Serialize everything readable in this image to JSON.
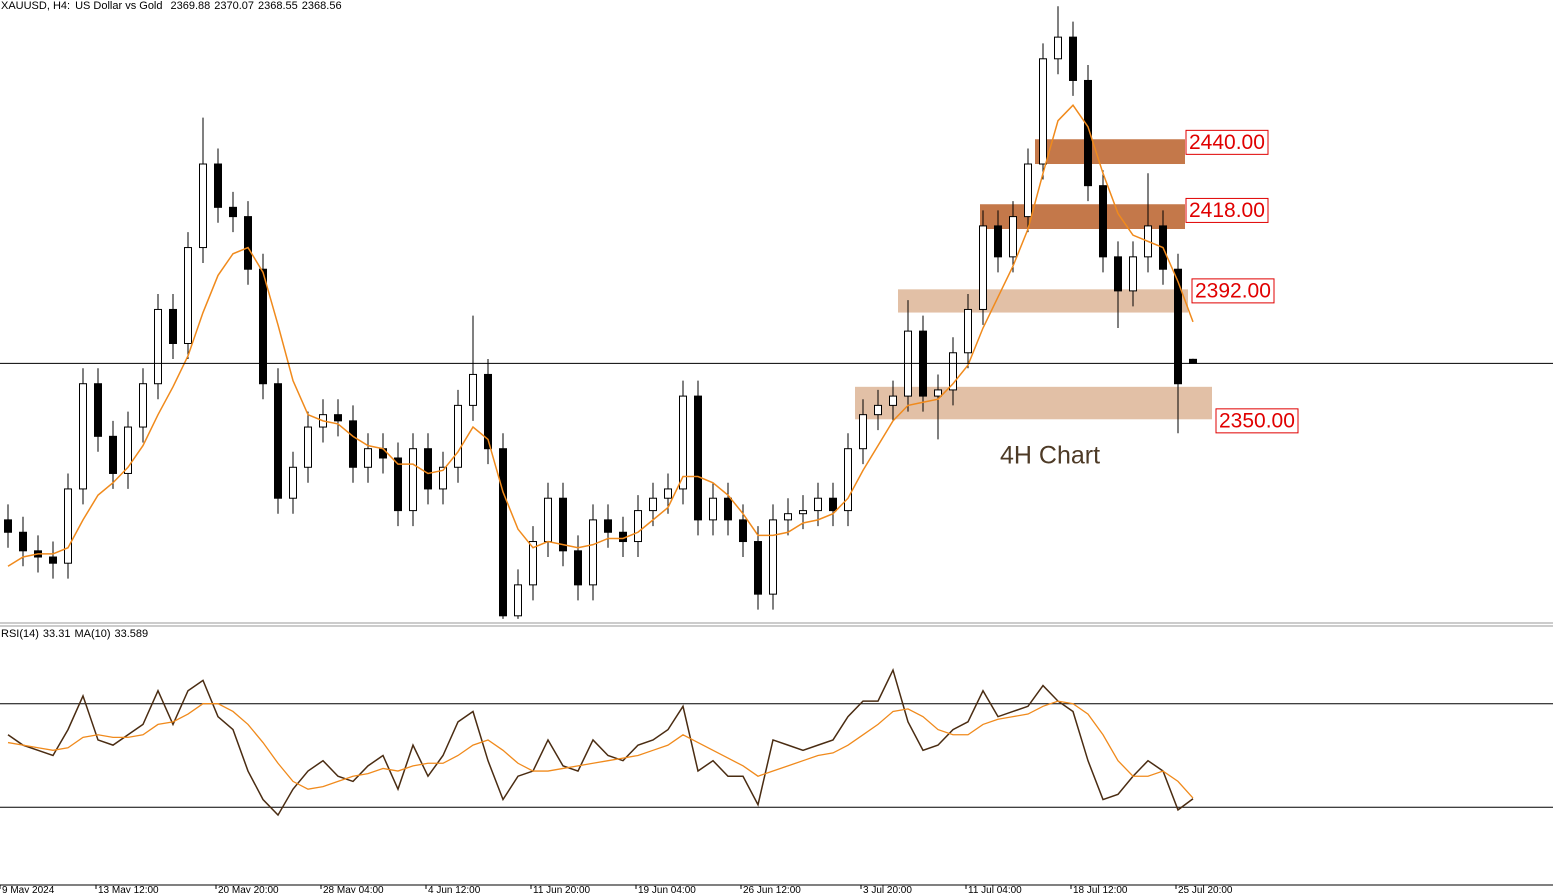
{
  "chart_data": {
    "type": "candlestick",
    "symbol": "XAUUSD, H4:",
    "description": "US Dollar vs Gold",
    "annotation": "4H Chart",
    "ylim": [
      2285,
      2486
    ],
    "categories": [
      "9 May 2024",
      null,
      null,
      null,
      null,
      null,
      "13 May 12:00",
      null,
      null,
      null,
      null,
      null,
      null,
      null,
      "20 May 20:00",
      null,
      null,
      null,
      null,
      null,
      null,
      "28 May 04:00",
      null,
      null,
      null,
      null,
      null,
      null,
      "4 Jun 12:00",
      null,
      null,
      null,
      null,
      null,
      null,
      "11 Jun 20:00",
      null,
      null,
      null,
      null,
      null,
      null,
      "19 Jun 04:00",
      null,
      null,
      null,
      null,
      null,
      null,
      "26 Jun 12:00",
      null,
      null,
      null,
      null,
      null,
      null,
      null,
      "3 Jul 20:00",
      null,
      null,
      null,
      null,
      null,
      null,
      "11 Jul 04:00",
      null,
      null,
      null,
      null,
      null,
      null,
      "18 Jul 12:00",
      null,
      null,
      null,
      null,
      null,
      null,
      "25 Jul 20:00",
      null
    ],
    "ohlc": [
      [
        2318,
        2323,
        2309,
        2314
      ],
      [
        2314,
        2319,
        2303,
        2308
      ],
      [
        2308,
        2313,
        2301,
        2306
      ],
      [
        2306,
        2311,
        2299,
        2304
      ],
      [
        2304,
        2333,
        2299,
        2328
      ],
      [
        2328,
        2367,
        2323,
        2362
      ],
      [
        2362,
        2367,
        2340,
        2345
      ],
      [
        2345,
        2350,
        2328,
        2333
      ],
      [
        2333,
        2353,
        2328,
        2348
      ],
      [
        2348,
        2367,
        2343,
        2362
      ],
      [
        2362,
        2391,
        2357,
        2386
      ],
      [
        2386,
        2391,
        2370,
        2375
      ],
      [
        2375,
        2411,
        2370,
        2406
      ],
      [
        2406,
        2448,
        2401,
        2433
      ],
      [
        2433,
        2438,
        2414,
        2419
      ],
      [
        2419,
        2424,
        2411,
        2416
      ],
      [
        2416,
        2421,
        2394,
        2399
      ],
      [
        2399,
        2404,
        2357,
        2362
      ],
      [
        2362,
        2367,
        2320,
        2325
      ],
      [
        2325,
        2340,
        2320,
        2335
      ],
      [
        2335,
        2353,
        2330,
        2348
      ],
      [
        2348,
        2357,
        2343,
        2352
      ],
      [
        2352,
        2357,
        2345,
        2350
      ],
      [
        2350,
        2355,
        2330,
        2335
      ],
      [
        2335,
        2346,
        2330,
        2341
      ],
      [
        2341,
        2346,
        2333,
        2338
      ],
      [
        2338,
        2343,
        2316,
        2321
      ],
      [
        2321,
        2346,
        2316,
        2341
      ],
      [
        2341,
        2346,
        2323,
        2328
      ],
      [
        2328,
        2340,
        2323,
        2335
      ],
      [
        2335,
        2360,
        2330,
        2355
      ],
      [
        2355,
        2384,
        2350,
        2365
      ],
      [
        2365,
        2370,
        2336,
        2341
      ],
      [
        2341,
        2346,
        2286,
        2287
      ],
      [
        2287,
        2302,
        2286,
        2297
      ],
      [
        2297,
        2316,
        2292,
        2311
      ],
      [
        2311,
        2330,
        2306,
        2325
      ],
      [
        2325,
        2330,
        2303,
        2308
      ],
      [
        2308,
        2313,
        2292,
        2297
      ],
      [
        2297,
        2323,
        2292,
        2318
      ],
      [
        2318,
        2323,
        2309,
        2314
      ],
      [
        2314,
        2319,
        2306,
        2311
      ],
      [
        2311,
        2326,
        2306,
        2321
      ],
      [
        2321,
        2330,
        2316,
        2325
      ],
      [
        2325,
        2333,
        2320,
        2328
      ],
      [
        2328,
        2363,
        2323,
        2358
      ],
      [
        2358,
        2363,
        2313,
        2318
      ],
      [
        2318,
        2330,
        2313,
        2325
      ],
      [
        2325,
        2330,
        2313,
        2318
      ],
      [
        2318,
        2323,
        2306,
        2311
      ],
      [
        2311,
        2316,
        2289,
        2294
      ],
      [
        2294,
        2323,
        2289,
        2318
      ],
      [
        2318,
        2325,
        2313,
        2320
      ],
      [
        2320,
        2326,
        2315,
        2321
      ],
      [
        2321,
        2330,
        2316,
        2325
      ],
      [
        2325,
        2330,
        2316,
        2321
      ],
      [
        2321,
        2346,
        2316,
        2341
      ],
      [
        2341,
        2357,
        2336,
        2352
      ],
      [
        2352,
        2360,
        2347,
        2355
      ],
      [
        2355,
        2363,
        2350,
        2358
      ],
      [
        2358,
        2389,
        2353,
        2379
      ],
      [
        2379,
        2384,
        2353,
        2358
      ],
      [
        2358,
        2365,
        2344,
        2360
      ],
      [
        2360,
        2377,
        2355,
        2372
      ],
      [
        2372,
        2391,
        2367,
        2386
      ],
      [
        2386,
        2418,
        2381,
        2413
      ],
      [
        2413,
        2418,
        2398,
        2403
      ],
      [
        2403,
        2421,
        2398,
        2416
      ],
      [
        2416,
        2438,
        2411,
        2433
      ],
      [
        2433,
        2472,
        2428,
        2467
      ],
      [
        2467,
        2484,
        2462,
        2474
      ],
      [
        2474,
        2479,
        2455,
        2460
      ],
      [
        2460,
        2465,
        2421,
        2426
      ],
      [
        2426,
        2431,
        2398,
        2403
      ],
      [
        2403,
        2408,
        2380,
        2392
      ],
      [
        2392,
        2408,
        2387,
        2403
      ],
      [
        2403,
        2430,
        2398,
        2413
      ],
      [
        2413,
        2418,
        2394,
        2399
      ],
      [
        2399,
        2404,
        2346,
        2362
      ],
      [
        2369.88,
        2370.07,
        2368.55,
        2368.56
      ]
    ],
    "candle_colors": {
      "up": "#ffffff",
      "down": "#000000",
      "outline": "#000000"
    },
    "ma_color": "#f08a1c",
    "ma_values": [
      2303,
      2306,
      2307,
      2307,
      2309,
      2318,
      2326,
      2330,
      2335,
      2342,
      2352,
      2361,
      2371,
      2385,
      2397,
      2404,
      2406,
      2398,
      2381,
      2363,
      2352,
      2350,
      2349,
      2345,
      2342,
      2341,
      2336,
      2336,
      2333,
      2334,
      2340,
      2348,
      2344,
      2327,
      2315,
      2309,
      2311,
      2310,
      2309,
      2310,
      2312,
      2312,
      2314,
      2318,
      2322,
      2332,
      2332,
      2330,
      2326,
      2320,
      2313,
      2313,
      2314,
      2317,
      2318,
      2320,
      2325,
      2334,
      2342,
      2350,
      2355,
      2356,
      2357,
      2362,
      2368,
      2380,
      2390,
      2400,
      2412,
      2430,
      2447,
      2452,
      2445,
      2430,
      2417,
      2410,
      2408,
      2406,
      2395,
      2382
    ],
    "zones": [
      {
        "level": {
          "value": 2440,
          "label": "2440.00"
        },
        "low": 2433,
        "high": 2441,
        "color": "#c4784a"
      },
      {
        "level": {
          "value": 2418,
          "label": "2418.00"
        },
        "low": 2412,
        "high": 2420,
        "color": "#c4784a"
      },
      {
        "level": {
          "value": 2392,
          "label": "2392.00"
        },
        "low": 2385,
        "high": 2392.5,
        "color": "#e2c0a6"
      },
      {
        "level": {
          "value": 2350,
          "label": "2350.00"
        },
        "low": 2350.5,
        "high": 2361,
        "color": "#e2c0a6"
      }
    ],
    "rsi": {
      "label": "RSI(14)",
      "ma_label": "MA(10)",
      "ylim": [
        0,
        100
      ],
      "levels": [
        30,
        70
      ],
      "color": "#4a2c12",
      "ma_color": "#f08a1c",
      "values": [
        58,
        54,
        52,
        50,
        60,
        73,
        56,
        54,
        58,
        62,
        75,
        62,
        75,
        79,
        65,
        60,
        44,
        33,
        27,
        37,
        44,
        48,
        42,
        40,
        46,
        50,
        37,
        54,
        42,
        50,
        63,
        67,
        48,
        33,
        42,
        44,
        56,
        46,
        44,
        56,
        50,
        48,
        54,
        56,
        60,
        69,
        44,
        48,
        42,
        42,
        31,
        56,
        54,
        52,
        54,
        56,
        65,
        71,
        71,
        83,
        63,
        52,
        54,
        60,
        63,
        75,
        65,
        67,
        69,
        77,
        71,
        67,
        48,
        33,
        35,
        42,
        48,
        44,
        29,
        33.31
      ],
      "ma_values": [
        55,
        54,
        53,
        52,
        53,
        57,
        58,
        57,
        57,
        58,
        62,
        63,
        66,
        70,
        70,
        67,
        62,
        55,
        47,
        40,
        37,
        38,
        40,
        42,
        43,
        45,
        44,
        46,
        47,
        47,
        50,
        54,
        56,
        52,
        47,
        44,
        44,
        45,
        46,
        47,
        48,
        49,
        50,
        52,
        54,
        58,
        55,
        52,
        49,
        46,
        42,
        44,
        46,
        48,
        50,
        51,
        54,
        58,
        62,
        67,
        68,
        65,
        60,
        58,
        58,
        62,
        64,
        65,
        66,
        69,
        71,
        70,
        66,
        58,
        48,
        42,
        42,
        44,
        40,
        33.589
      ]
    }
  }
}
